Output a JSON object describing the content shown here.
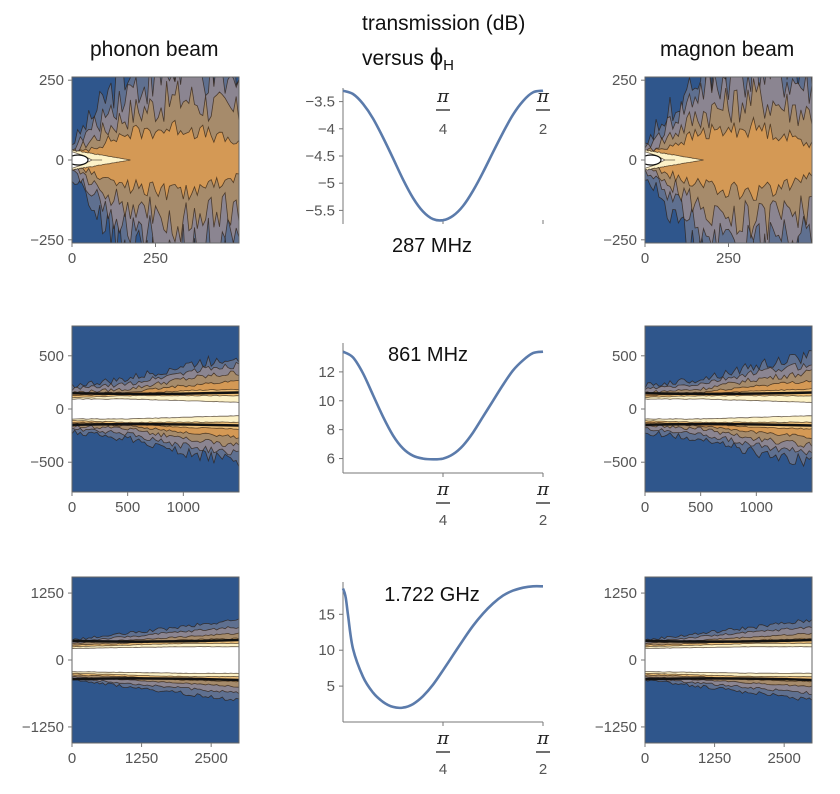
{
  "headers": {
    "left": "phonon beam",
    "right": "magnon beam",
    "center_line1": "transmission (dB)",
    "center_line2_prefix": "versus ",
    "center_phi": "ϕ",
    "center_phi_sub": "H"
  },
  "colors": {
    "field_bg": "#2f568c",
    "curve": "#5b7bab",
    "contour_levels": [
      "#2f568c",
      "#5f7090",
      "#8b8591",
      "#a68b6b",
      "#d49955",
      "#f0c27b",
      "#fdf2c8",
      "#ffffff"
    ],
    "contour_edge": "#2a1a0c"
  },
  "chart_data": [
    {
      "type": "heatmap",
      "panel": "phonon beam",
      "row": 1,
      "xlim": [
        0,
        500
      ],
      "ylim": [
        -260,
        260
      ],
      "xticks": [
        0,
        250
      ],
      "yticks": [
        250,
        0,
        -250
      ],
      "xtick_labels": [
        "0",
        "250"
      ],
      "ytick_labels": [
        "250",
        "0",
        "−250"
      ],
      "description": "beam intensity contour"
    },
    {
      "type": "line",
      "row": 1,
      "title": "287 MHz",
      "ylabel": "transmission (dB)",
      "xlabel": "ϕH",
      "xlim": [
        0,
        1.5708
      ],
      "ylim": [
        -5.75,
        -3.25
      ],
      "yticks": [
        -3.5,
        -4,
        -4.5,
        -5,
        -5.5
      ],
      "ytick_labels": [
        "−3.5",
        "−4",
        "−4.5",
        "−5",
        "−5.5"
      ],
      "xticks": [
        0.7854,
        1.5708
      ],
      "xtick_labels": [
        {
          "num": "π",
          "den": "4"
        },
        {
          "num": "π",
          "den": "2"
        }
      ],
      "x": [
        0,
        0.0785,
        0.1571,
        0.2356,
        0.3142,
        0.3927,
        0.4712,
        0.5498,
        0.6283,
        0.7069,
        0.7854,
        0.8639,
        0.9425,
        1.021,
        1.0996,
        1.1781,
        1.2566,
        1.3352,
        1.4137,
        1.4923,
        1.5708
      ],
      "y": [
        -3.3,
        -3.36,
        -3.54,
        -3.81,
        -4.16,
        -4.54,
        -4.93,
        -5.27,
        -5.52,
        -5.66,
        -5.68,
        -5.6,
        -5.42,
        -5.14,
        -4.8,
        -4.43,
        -4.07,
        -3.74,
        -3.49,
        -3.33,
        -3.3
      ]
    },
    {
      "type": "heatmap",
      "panel": "magnon beam",
      "row": 1,
      "xlim": [
        0,
        500
      ],
      "ylim": [
        -260,
        260
      ],
      "xticks": [
        0,
        250
      ],
      "yticks": [
        250,
        0,
        -250
      ],
      "xtick_labels": [
        "0",
        "250"
      ],
      "ytick_labels": [
        "250",
        "0",
        "−250"
      ],
      "description": "beam intensity contour"
    },
    {
      "type": "heatmap",
      "panel": "phonon beam",
      "row": 2,
      "xlim": [
        0,
        1500
      ],
      "ylim": [
        -780,
        780
      ],
      "xticks": [
        0,
        500,
        1000
      ],
      "yticks": [
        500,
        0,
        -500
      ],
      "xtick_labels": [
        "0",
        "500",
        "1000"
      ],
      "ytick_labels": [
        "500",
        "0",
        "−500"
      ],
      "description": "beam intensity contour"
    },
    {
      "type": "line",
      "row": 2,
      "title": "861 MHz",
      "ylabel": "transmission (dB)",
      "xlabel": "ϕH",
      "xlim": [
        0,
        1.5708
      ],
      "ylim": [
        5,
        14
      ],
      "yticks": [
        12,
        10,
        8,
        6
      ],
      "ytick_labels": [
        "12",
        "10",
        "8",
        "6"
      ],
      "xticks": [
        0.7854,
        1.5708
      ],
      "xtick_labels": [
        {
          "num": "π",
          "den": "4"
        },
        {
          "num": "π",
          "den": "2"
        }
      ],
      "x": [
        0,
        0.0785,
        0.1571,
        0.2356,
        0.3142,
        0.3927,
        0.4712,
        0.5498,
        0.6283,
        0.7069,
        0.7854,
        0.8639,
        0.9425,
        1.021,
        1.0996,
        1.1781,
        1.2566,
        1.3352,
        1.4137,
        1.4923,
        1.5708
      ],
      "y": [
        13.4,
        13.0,
        11.9,
        10.4,
        8.9,
        7.6,
        6.7,
        6.2,
        6.0,
        5.95,
        6.0,
        6.3,
        6.9,
        7.8,
        8.9,
        10.0,
        11.1,
        12.1,
        12.8,
        13.3,
        13.4
      ]
    },
    {
      "type": "heatmap",
      "panel": "magnon beam",
      "row": 2,
      "xlim": [
        0,
        1500
      ],
      "ylim": [
        -780,
        780
      ],
      "xticks": [
        0,
        500,
        1000
      ],
      "yticks": [
        500,
        0,
        -500
      ],
      "xtick_labels": [
        "0",
        "500",
        "1000"
      ],
      "ytick_labels": [
        "500",
        "0",
        "−500"
      ],
      "description": "beam intensity contour"
    },
    {
      "type": "heatmap",
      "panel": "phonon beam",
      "row": 3,
      "xlim": [
        0,
        3000
      ],
      "ylim": [
        -1550,
        1550
      ],
      "xticks": [
        0,
        1250,
        2500
      ],
      "yticks": [
        1250,
        0,
        -1250
      ],
      "xtick_labels": [
        "0",
        "1250",
        "2500"
      ],
      "ytick_labels": [
        "1250",
        "0",
        "−1250"
      ],
      "description": "beam intensity contour"
    },
    {
      "type": "line",
      "row": 3,
      "title": "1.722 GHz",
      "ylabel": "transmission (dB)",
      "xlabel": "ϕH",
      "xlim": [
        0,
        1.5708
      ],
      "ylim": [
        0,
        19.5
      ],
      "yticks": [
        15,
        10,
        5
      ],
      "ytick_labels": [
        "15",
        "10",
        "5"
      ],
      "xticks": [
        0.7854,
        1.5708
      ],
      "xtick_labels": [
        {
          "num": "π",
          "den": "4"
        },
        {
          "num": "π",
          "den": "2"
        }
      ],
      "x": [
        0,
        0.02,
        0.04,
        0.0785,
        0.1571,
        0.2356,
        0.3142,
        0.3927,
        0.4712,
        0.5498,
        0.6283,
        0.7069,
        0.7854,
        0.8639,
        0.9425,
        1.021,
        1.0996,
        1.1781,
        1.2566,
        1.3352,
        1.4137,
        1.4923,
        1.5708
      ],
      "y": [
        18.6,
        17.5,
        14.8,
        10.2,
        6.3,
        4.1,
        2.8,
        2.1,
        2.0,
        2.5,
        3.6,
        5.2,
        7.2,
        9.3,
        11.4,
        13.4,
        15.1,
        16.5,
        17.6,
        18.3,
        18.7,
        18.9,
        18.9
      ]
    },
    {
      "type": "heatmap",
      "panel": "magnon beam",
      "row": 3,
      "xlim": [
        0,
        3000
      ],
      "ylim": [
        -1550,
        1550
      ],
      "xticks": [
        0,
        1250,
        2500
      ],
      "yticks": [
        1250,
        0,
        -1250
      ],
      "xtick_labels": [
        "0",
        "1250",
        "2500"
      ],
      "ytick_labels": [
        "1250",
        "0",
        "−1250"
      ],
      "description": "beam intensity contour"
    }
  ]
}
